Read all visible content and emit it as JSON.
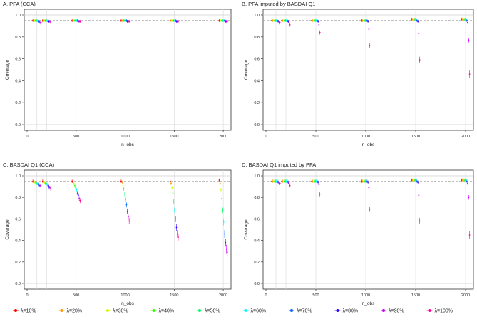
{
  "colors": [
    "#ff0000",
    "#ff9900",
    "#ccff00",
    "#33ff00",
    "#00ff66",
    "#00ffff",
    "#0066ff",
    "#3300ff",
    "#cc00ff",
    "#ff0099"
  ],
  "legend": [
    "λ=10%",
    "λ=20%",
    "λ=30%",
    "λ=40%",
    "λ=50%",
    "λ=60%",
    "λ=70%",
    "λ=80%",
    "λ=90%",
    "λ=100%"
  ],
  "chart_data": [
    {
      "type": "scatter",
      "title": "A. PFA (CCA)",
      "xlabel": "n_obs",
      "ylabel": "Coverage",
      "xlim": [
        0,
        2050
      ],
      "ylim": [
        0,
        1
      ],
      "x_ticks": [
        "0",
        "500",
        "1000",
        "1500",
        "2000"
      ],
      "y_ticks": [
        "0.0",
        "0.2",
        "0.4",
        "0.6",
        "0.8",
        "1.0"
      ],
      "reference_lines": [
        0.95,
        1.0
      ],
      "n_obs": [
        100,
        200,
        500,
        1000,
        1500,
        2000
      ],
      "series": [
        {
          "name": "λ=10%",
          "values": [
            0.95,
            0.95,
            0.95,
            0.95,
            0.95,
            0.95
          ]
        },
        {
          "name": "λ=20%",
          "values": [
            0.95,
            0.95,
            0.95,
            0.95,
            0.95,
            0.95
          ]
        },
        {
          "name": "λ=30%",
          "values": [
            0.95,
            0.95,
            0.95,
            0.95,
            0.95,
            0.95
          ]
        },
        {
          "name": "λ=40%",
          "values": [
            0.95,
            0.95,
            0.95,
            0.95,
            0.95,
            0.95
          ]
        },
        {
          "name": "λ=50%",
          "values": [
            0.95,
            0.95,
            0.95,
            0.95,
            0.95,
            0.95
          ]
        },
        {
          "name": "λ=60%",
          "values": [
            0.95,
            0.95,
            0.95,
            0.95,
            0.95,
            0.95
          ]
        },
        {
          "name": "λ=70%",
          "values": [
            0.94,
            0.94,
            0.95,
            0.95,
            0.95,
            0.95
          ]
        },
        {
          "name": "λ=80%",
          "values": [
            0.94,
            0.94,
            0.94,
            0.94,
            0.94,
            0.94
          ]
        },
        {
          "name": "λ=90%",
          "values": [
            0.93,
            0.94,
            0.94,
            0.94,
            0.94,
            0.94
          ]
        },
        {
          "name": "λ=100%",
          "values": [
            0.93,
            0.93,
            0.94,
            0.94,
            0.94,
            0.94
          ]
        }
      ]
    },
    {
      "type": "scatter",
      "title": "B. PFA imputed by BASDAI Q1",
      "xlabel": "n_obs",
      "ylabel": "Coverage",
      "xlim": [
        0,
        2050
      ],
      "ylim": [
        0,
        1
      ],
      "x_ticks": [
        "0",
        "500",
        "1000",
        "1500",
        "2000"
      ],
      "y_ticks": [
        "0.0",
        "0.2",
        "0.4",
        "0.6",
        "0.8",
        "1.0"
      ],
      "reference_lines": [
        0.95,
        1.0
      ],
      "n_obs": [
        100,
        200,
        500,
        1000,
        1500,
        2000
      ],
      "series": [
        {
          "name": "λ=10%",
          "values": [
            0.95,
            0.95,
            0.95,
            0.95,
            0.96,
            0.96
          ]
        },
        {
          "name": "λ=20%",
          "values": [
            0.95,
            0.95,
            0.95,
            0.95,
            0.96,
            0.96
          ]
        },
        {
          "name": "λ=30%",
          "values": [
            0.95,
            0.95,
            0.95,
            0.95,
            0.96,
            0.96
          ]
        },
        {
          "name": "λ=40%",
          "values": [
            0.95,
            0.95,
            0.95,
            0.95,
            0.96,
            0.96
          ]
        },
        {
          "name": "λ=50%",
          "values": [
            0.95,
            0.95,
            0.95,
            0.95,
            0.96,
            0.96
          ]
        },
        {
          "name": "λ=60%",
          "values": [
            0.95,
            0.95,
            0.95,
            0.95,
            0.96,
            0.96
          ]
        },
        {
          "name": "λ=70%",
          "values": [
            0.95,
            0.95,
            0.95,
            0.95,
            0.95,
            0.95
          ]
        },
        {
          "name": "λ=80%",
          "values": [
            0.94,
            0.94,
            0.94,
            0.94,
            0.94,
            0.93
          ]
        },
        {
          "name": "λ=90%",
          "values": [
            0.94,
            0.93,
            0.91,
            0.87,
            0.83,
            0.77
          ]
        },
        {
          "name": "λ=100%",
          "values": [
            0.93,
            0.91,
            0.84,
            0.72,
            0.59,
            0.46
          ]
        }
      ]
    },
    {
      "type": "scatter",
      "title": "C. BASDAI Q1 (CCA)",
      "xlabel": "n_obs",
      "ylabel": "Coverage",
      "xlim": [
        0,
        2050
      ],
      "ylim": [
        0,
        1
      ],
      "x_ticks": [
        "0",
        "500",
        "1000",
        "1500",
        "2000"
      ],
      "y_ticks": [
        "0.0",
        "0.2",
        "0.4",
        "0.6",
        "0.8",
        "1.0"
      ],
      "reference_lines": [
        0.95,
        1.0
      ],
      "n_obs": [
        100,
        200,
        500,
        1000,
        1500,
        2000
      ],
      "series": [
        {
          "name": "λ=10%",
          "values": [
            0.95,
            0.95,
            0.95,
            0.95,
            0.95,
            0.96
          ]
        },
        {
          "name": "λ=20%",
          "values": [
            0.95,
            0.95,
            0.94,
            0.94,
            0.93,
            0.93
          ]
        },
        {
          "name": "λ=30%",
          "values": [
            0.94,
            0.94,
            0.93,
            0.91,
            0.89,
            0.87
          ]
        },
        {
          "name": "λ=40%",
          "values": [
            0.94,
            0.93,
            0.91,
            0.88,
            0.84,
            0.79
          ]
        },
        {
          "name": "λ=50%",
          "values": [
            0.93,
            0.93,
            0.89,
            0.83,
            0.76,
            0.68
          ]
        },
        {
          "name": "λ=60%",
          "values": [
            0.93,
            0.92,
            0.87,
            0.78,
            0.68,
            0.57
          ]
        },
        {
          "name": "λ=70%",
          "values": [
            0.92,
            0.91,
            0.84,
            0.73,
            0.6,
            0.46
          ]
        },
        {
          "name": "λ=80%",
          "values": [
            0.91,
            0.9,
            0.82,
            0.67,
            0.52,
            0.38
          ]
        },
        {
          "name": "λ=90%",
          "values": [
            0.91,
            0.89,
            0.79,
            0.62,
            0.46,
            0.32
          ]
        },
        {
          "name": "λ=100%",
          "values": [
            0.9,
            0.88,
            0.77,
            0.58,
            0.43,
            0.29
          ]
        }
      ]
    },
    {
      "type": "scatter",
      "title": "D. BASDAI Q1 imputed by PFA",
      "xlabel": "n_obs",
      "ylabel": "Coverage",
      "xlim": [
        0,
        2050
      ],
      "ylim": [
        0,
        1
      ],
      "x_ticks": [
        "0",
        "500",
        "1000",
        "1500",
        "2000"
      ],
      "y_ticks": [
        "0.0",
        "0.2",
        "0.4",
        "0.6",
        "0.8",
        "1.0"
      ],
      "reference_lines": [
        0.95,
        1.0
      ],
      "n_obs": [
        100,
        200,
        500,
        1000,
        1500,
        2000
      ],
      "series": [
        {
          "name": "λ=10%",
          "values": [
            0.95,
            0.95,
            0.95,
            0.95,
            0.96,
            0.96
          ]
        },
        {
          "name": "λ=20%",
          "values": [
            0.95,
            0.95,
            0.95,
            0.95,
            0.96,
            0.96
          ]
        },
        {
          "name": "λ=30%",
          "values": [
            0.95,
            0.95,
            0.95,
            0.95,
            0.96,
            0.96
          ]
        },
        {
          "name": "λ=40%",
          "values": [
            0.95,
            0.95,
            0.95,
            0.95,
            0.96,
            0.96
          ]
        },
        {
          "name": "λ=50%",
          "values": [
            0.95,
            0.95,
            0.95,
            0.95,
            0.96,
            0.96
          ]
        },
        {
          "name": "λ=60%",
          "values": [
            0.95,
            0.95,
            0.95,
            0.95,
            0.96,
            0.96
          ]
        },
        {
          "name": "λ=70%",
          "values": [
            0.95,
            0.95,
            0.95,
            0.95,
            0.95,
            0.95
          ]
        },
        {
          "name": "λ=80%",
          "values": [
            0.94,
            0.94,
            0.94,
            0.94,
            0.94,
            0.93
          ]
        },
        {
          "name": "λ=90%",
          "values": [
            0.94,
            0.93,
            0.92,
            0.89,
            0.82,
            0.8
          ]
        },
        {
          "name": "λ=100%",
          "values": [
            0.93,
            0.91,
            0.83,
            0.69,
            0.58,
            0.45
          ]
        }
      ]
    }
  ]
}
